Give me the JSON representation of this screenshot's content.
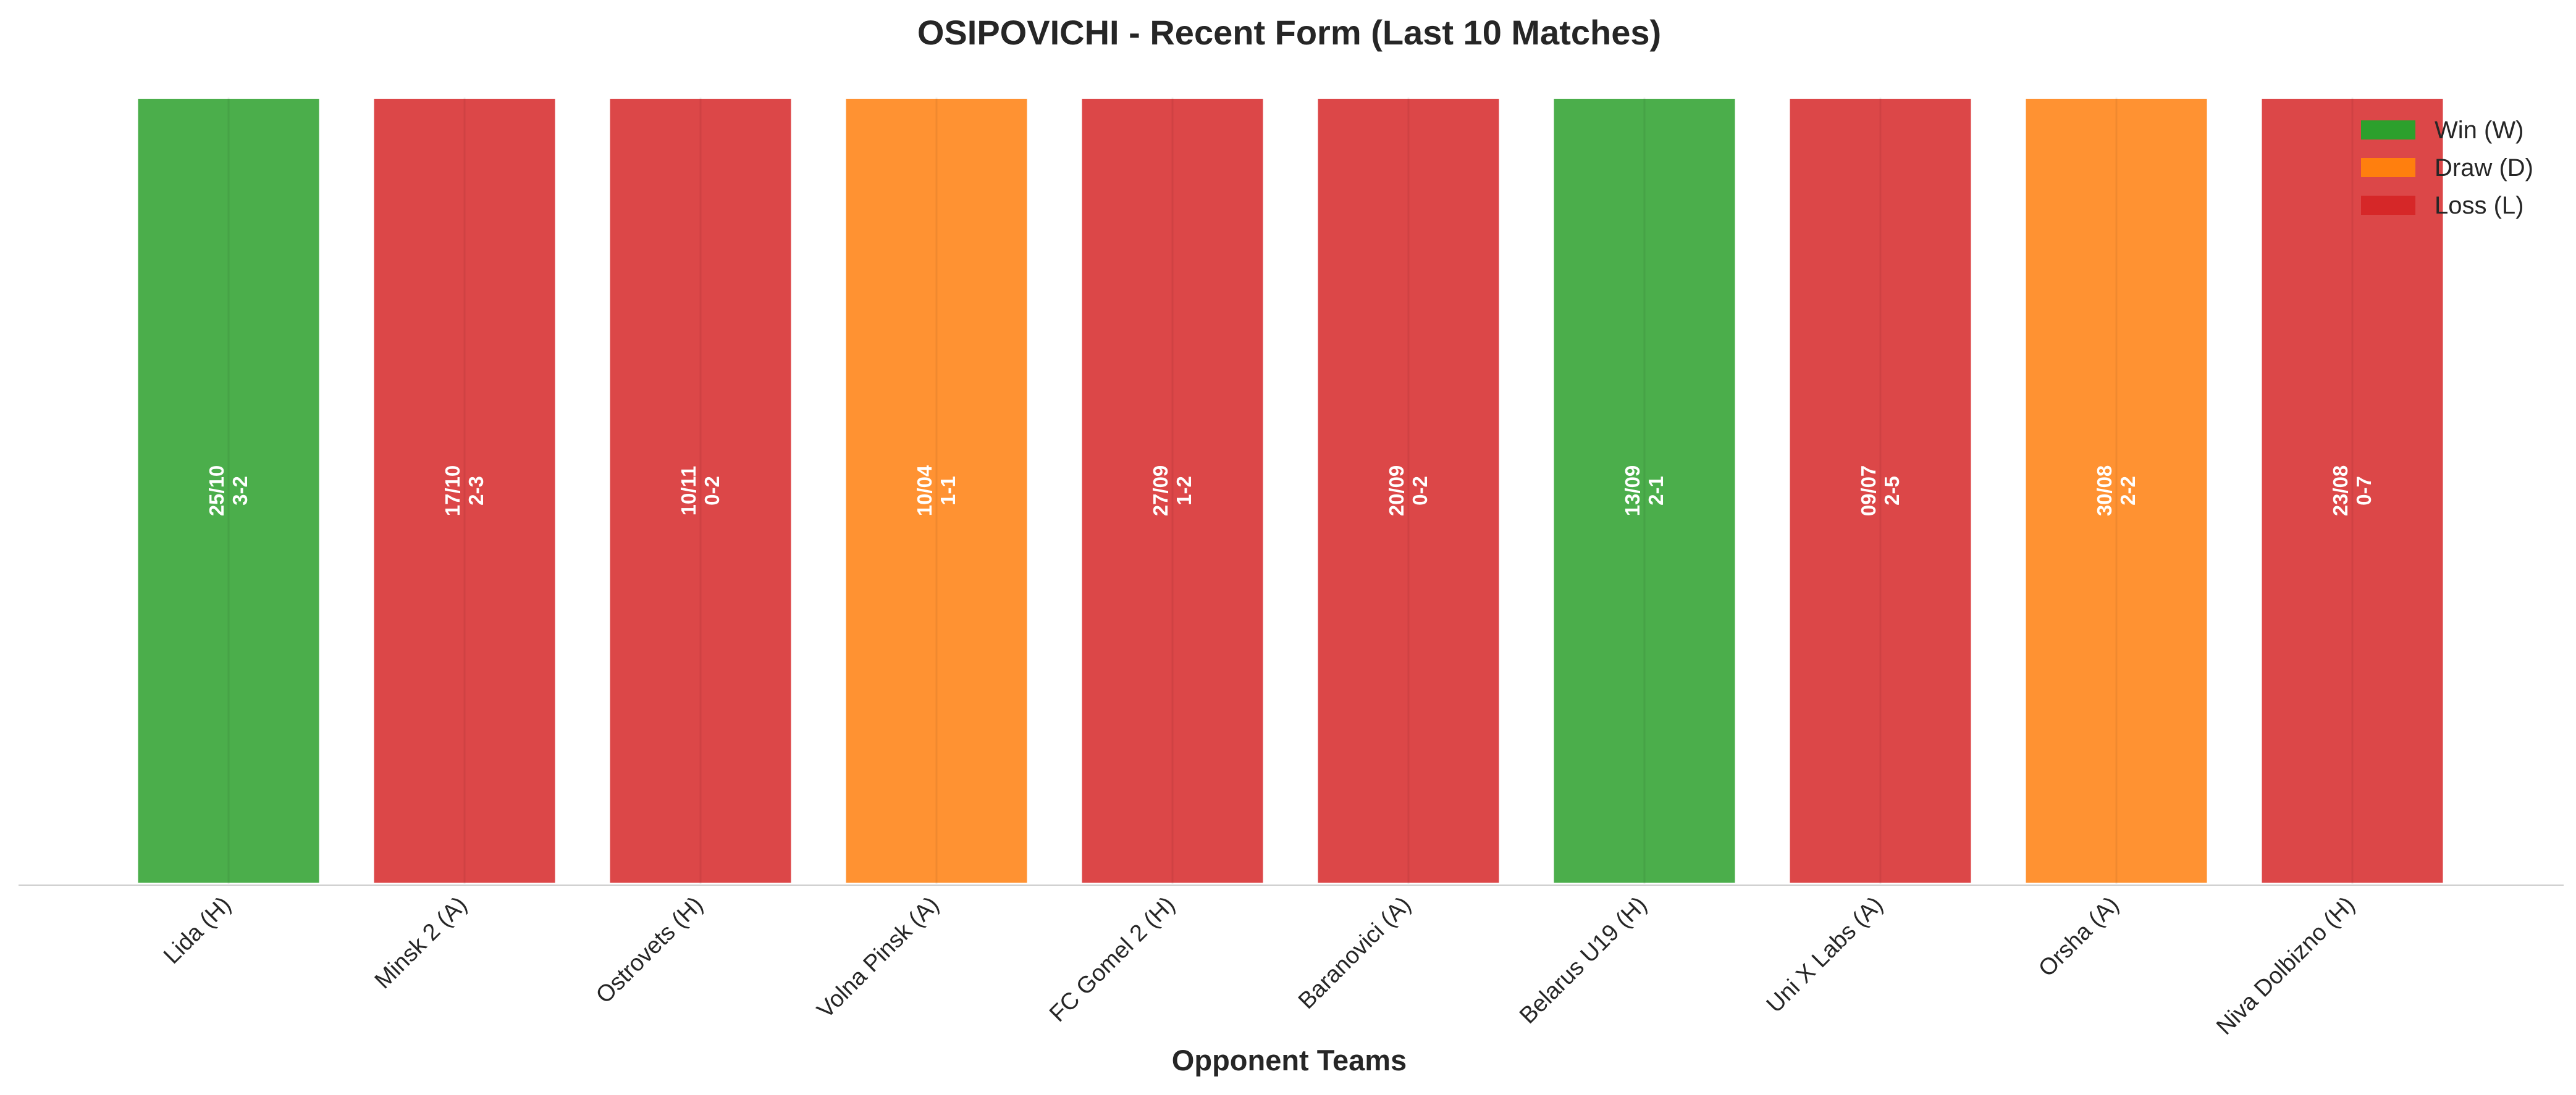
{
  "chart_data": {
    "type": "bar",
    "title": "OSIPOVICHI - Recent Form (Last 10 Matches)",
    "xlabel": "Opponent Teams",
    "ylabel": "",
    "ylim": [
      0,
      1
    ],
    "grid": false,
    "legend_position": "top-right",
    "colors": {
      "W": "#2ca02c",
      "D": "#ff7f0e",
      "L": "#d62728"
    },
    "legend": [
      {
        "key": "W",
        "label": "Win (W)"
      },
      {
        "key": "D",
        "label": "Draw (D)"
      },
      {
        "key": "L",
        "label": "Loss (L)"
      }
    ],
    "categories": [
      "Lida (H)",
      "Minsk 2 (A)",
      "Ostrovets (H)",
      "Volna Pinsk (A)",
      "FC Gomel 2 (H)",
      "Baranovici (A)",
      "Belarus U19 (H)",
      "Uni X Labs (A)",
      "Orsha (A)",
      "Niva Dolbizno (H)"
    ],
    "values": [
      1,
      1,
      1,
      1,
      1,
      1,
      1,
      1,
      1,
      1
    ],
    "results": [
      "W",
      "L",
      "L",
      "D",
      "L",
      "L",
      "W",
      "L",
      "D",
      "L"
    ],
    "dates": [
      "25/10",
      "17/10",
      "10/11",
      "10/04",
      "27/09",
      "20/09",
      "13/09",
      "09/07",
      "30/08",
      "23/08"
    ],
    "scores": [
      "3-2",
      "2-3",
      "0-2",
      "1-1",
      "1-2",
      "0-2",
      "2-1",
      "2-5",
      "2-2",
      "0-7"
    ]
  }
}
